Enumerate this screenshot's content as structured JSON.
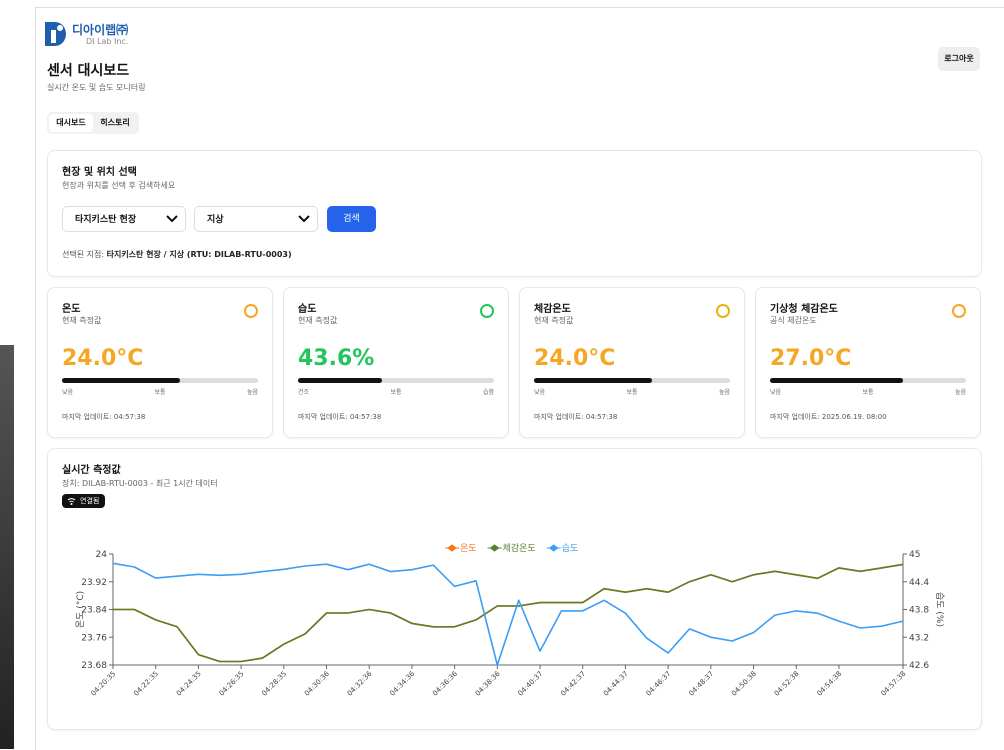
{
  "header": {
    "brand": "디아이랩㈜",
    "brand_sub": "DI Lab Inc.",
    "title": "센서 대시보드",
    "subtitle": "실시간 온도 및 습도 모니터링",
    "logout": "로그아웃"
  },
  "tabs": [
    "대시보드",
    "히스토리"
  ],
  "selection": {
    "title": "현장 및 위치 선택",
    "description": "현장과 위치를 선택 후 검색하세요",
    "site": "타지키스탄 현장",
    "location": "지상",
    "search": "검색",
    "selected_label": "선택된 지점:",
    "selected_value": "타지키스탄 현장 / 지상 (RTU: DILAB-RTU-0003)"
  },
  "cards": [
    {
      "title": "온도",
      "subtitle": "현재 측정값",
      "value": "24.0°C",
      "scale": [
        "낮음",
        "보통",
        "높음"
      ],
      "updated": "마지막 업데이트: 04:57:38"
    },
    {
      "title": "습도",
      "subtitle": "현재 측정값",
      "value": "43.6%",
      "scale": [
        "건조",
        "보통",
        "습함"
      ],
      "updated": "마지막 업데이트: 04:57:38"
    },
    {
      "title": "체감온도",
      "subtitle": "현재 측정값",
      "value": "24.0°C",
      "scale": [
        "낮음",
        "보통",
        "높음"
      ],
      "updated": "마지막 업데이트: 04:57:38"
    },
    {
      "title": "기상청 체감온도",
      "subtitle": "공식 체감온도",
      "value": "27.0°C",
      "scale": [
        "낮음",
        "보통",
        "높음"
      ],
      "updated": "마지막 업데이트: 2025.06.19. 08:00"
    }
  ],
  "realtime": {
    "title": "실시간 측정값",
    "device": "장치: DILAB-RTU-0003 - 최근 1시간 데이터",
    "status": "연결됨"
  },
  "chart_data": {
    "type": "line",
    "categories": [
      "04:20:35",
      null,
      "04:22:35",
      null,
      "04:24:35",
      null,
      "04:26:35",
      null,
      "04:28:35",
      null,
      "04:30:36",
      null,
      "04:32:36",
      null,
      "04:34:36",
      null,
      "04:36:36",
      null,
      "04:38:36",
      null,
      "04:40:37",
      null,
      "04:42:37",
      null,
      "04:44:37",
      null,
      "04:46:37",
      null,
      "04:48:37",
      null,
      "04:50:38",
      null,
      "04:52:38",
      null,
      "04:54:38",
      null,
      null,
      "04:57:38"
    ],
    "series": [
      {
        "name": "온도",
        "color": "#f97316",
        "axis": "y",
        "values": [
          23.84,
          23.84,
          23.81,
          23.79,
          23.71,
          23.69,
          23.69,
          23.7,
          23.74,
          23.77,
          23.83,
          23.83,
          23.84,
          23.83,
          23.8,
          23.79,
          23.79,
          23.81,
          23.85,
          23.85,
          23.86,
          23.86,
          23.86,
          23.9,
          23.89,
          23.9,
          23.89,
          23.92,
          23.94,
          23.92,
          23.94,
          23.95,
          23.94,
          23.93,
          23.96,
          23.95,
          23.96,
          23.97
        ]
      },
      {
        "name": "체감온도",
        "color": "#5a7f2b",
        "axis": "y",
        "values": [
          23.84,
          23.84,
          23.81,
          23.79,
          23.71,
          23.69,
          23.69,
          23.7,
          23.74,
          23.77,
          23.83,
          23.83,
          23.84,
          23.83,
          23.8,
          23.79,
          23.79,
          23.81,
          23.85,
          23.85,
          23.86,
          23.86,
          23.86,
          23.9,
          23.89,
          23.9,
          23.89,
          23.92,
          23.94,
          23.92,
          23.94,
          23.95,
          23.94,
          23.93,
          23.96,
          23.95,
          23.96,
          23.97
        ]
      },
      {
        "name": "습도",
        "color": "#3b9df5",
        "axis": "y2",
        "values": [
          44.8,
          44.72,
          44.48,
          44.52,
          44.56,
          44.54,
          44.56,
          44.62,
          44.67,
          44.74,
          44.78,
          44.66,
          44.78,
          44.62,
          44.66,
          44.76,
          44.3,
          44.42,
          42.6,
          44.0,
          42.9,
          43.77,
          43.77,
          44.0,
          43.72,
          43.18,
          42.86,
          43.38,
          43.2,
          43.12,
          43.3,
          43.68,
          43.77,
          43.72,
          43.55,
          43.4,
          43.44,
          43.55
        ]
      }
    ],
    "ylabel": "온도 (°C)",
    "y2label": "습도 (%)",
    "ylim": [
      23.68,
      24
    ],
    "yticks": [
      23.68,
      23.76,
      23.84,
      23.92,
      24
    ],
    "y2lim": [
      42.6,
      45
    ],
    "y2ticks": [
      42.6,
      43.2,
      43.8,
      44.4,
      45
    ]
  }
}
